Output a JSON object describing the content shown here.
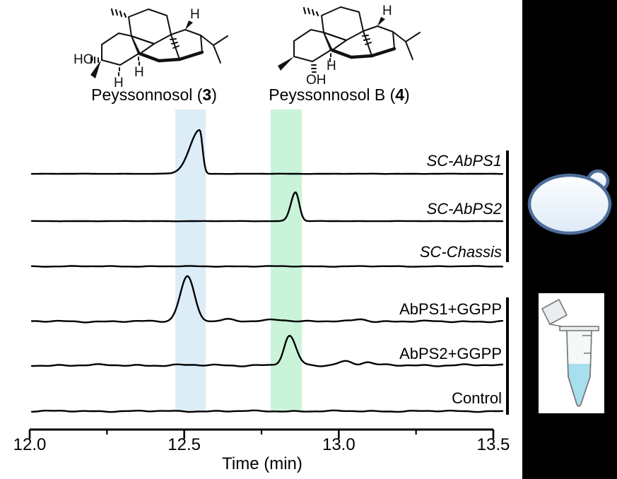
{
  "compounds": [
    {
      "prefix": "Peyssonnosol (",
      "number": "3",
      "suffix": ")",
      "hydroxyl": "HO",
      "h_label": "H"
    },
    {
      "prefix": "Peyssonnosol B (",
      "number": "4",
      "suffix": ")",
      "hydroxyl": "OH",
      "h_label": "H"
    }
  ],
  "chart_data": {
    "type": "line",
    "xlabel": "Time (min)",
    "xlim": [
      12.0,
      13.5
    ],
    "x_major_ticks": [
      12.0,
      12.5,
      13.0,
      13.5
    ],
    "x_tick_labels": [
      "12.0",
      "12.5",
      "13.0",
      "13.5"
    ],
    "x_minor_ticks": [
      12.25,
      12.75,
      13.25
    ],
    "grid": false,
    "highlight_bands": [
      {
        "compound": "3",
        "t_start": 12.47,
        "t_end": 12.57,
        "color": "#dcedf8",
        "name": "highlight-band-blue"
      },
      {
        "compound": "4",
        "t_start": 12.78,
        "t_end": 12.88,
        "color": "#c9f4d9",
        "name": "highlight-band-green"
      }
    ],
    "traces": [
      {
        "label": "SC-AbPS1",
        "italic": true,
        "bracket": 1,
        "noise": 0.2,
        "peaks": [
          {
            "t": 12.55,
            "height": 62,
            "wl": 0.032,
            "wr": 0.009
          }
        ]
      },
      {
        "label": "SC-AbPS2",
        "italic": true,
        "bracket": 1,
        "noise": 0.2,
        "peaks": [
          {
            "t": 12.86,
            "height": 41,
            "wl": 0.015,
            "wr": 0.012
          }
        ]
      },
      {
        "label": "SC-Chassis",
        "italic": true,
        "bracket": 1,
        "noise": 0.5,
        "peaks": []
      },
      {
        "label": "AbPS1+GGPP",
        "italic": false,
        "bracket": 2,
        "noise": 1.1,
        "peaks": [
          {
            "t": 12.51,
            "height": 64,
            "wl": 0.023,
            "wr": 0.023
          },
          {
            "t": 12.64,
            "height": 2.5,
            "wl": 0.02,
            "wr": 0.02
          },
          {
            "t": 12.8,
            "height": 3,
            "wl": 0.035,
            "wr": 0.035
          },
          {
            "t": 13.07,
            "height": 3.5,
            "wl": 0.02,
            "wr": 0.02
          }
        ]
      },
      {
        "label": "AbPS2+GGPP",
        "italic": false,
        "bracket": 2,
        "noise": 1.3,
        "peaks": [
          {
            "t": 12.84,
            "height": 41,
            "wl": 0.017,
            "wr": 0.021
          },
          {
            "t": 13.02,
            "height": 6,
            "wl": 0.022,
            "wr": 0.022
          },
          {
            "t": 13.09,
            "height": 4,
            "wl": 0.018,
            "wr": 0.018
          }
        ]
      },
      {
        "label": "Control",
        "italic": false,
        "bracket": 2,
        "noise": 0.9,
        "peaks": []
      }
    ]
  },
  "icons": {
    "yeast": "yeast-cell-icon",
    "tube": "microcentrifuge-tube-icon"
  },
  "colors": {
    "band_blue": "#dcedf8",
    "band_green": "#c9f4d9",
    "trace": "#000000",
    "yeast_outline": "#4d6d99",
    "yeast_fill_top": "#fdfeff",
    "yeast_fill_bottom": "#ddebf7",
    "tube_liquid": "#a8dfee",
    "tube_body": "#f2f5f6",
    "tube_outline": "#777777"
  }
}
